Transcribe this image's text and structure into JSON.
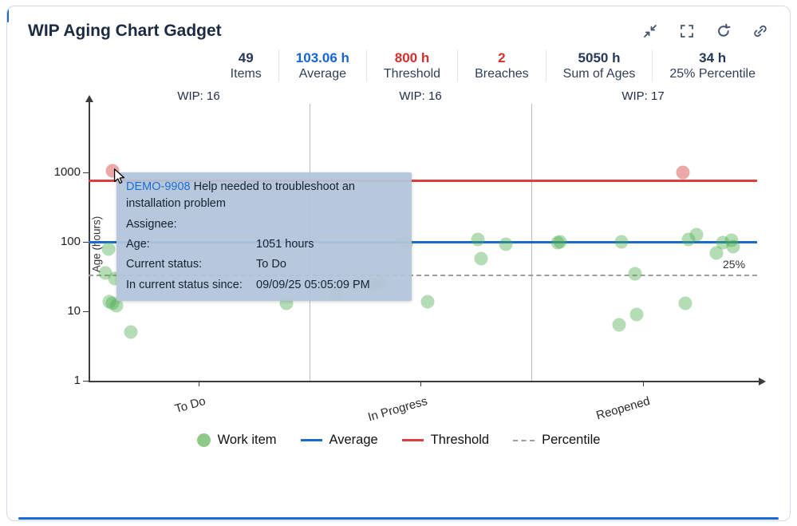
{
  "header": {
    "title": "WIP Aging Chart Gadget",
    "actions": [
      {
        "name": "collapse-icon"
      },
      {
        "name": "fullscreen-icon"
      },
      {
        "name": "refresh-icon"
      },
      {
        "name": "copy-link-icon"
      }
    ]
  },
  "stats": [
    {
      "value": "49",
      "label": "Items",
      "color": "#253858"
    },
    {
      "value": "103.06 h",
      "label": "Average",
      "color": "#1464d8"
    },
    {
      "value": "800 h",
      "label": "Threshold",
      "color": "#d32f2f"
    },
    {
      "value": "2",
      "label": "Breaches",
      "color": "#d32f2f"
    },
    {
      "value": "5050 h",
      "label": "Sum of Ages",
      "color": "#253858"
    },
    {
      "value": "34 h",
      "label": "25% Percentile",
      "color": "#253858"
    }
  ],
  "chart_data": {
    "type": "scatter",
    "ylabel": "Age (hours)",
    "y_scale": "log",
    "ylim": [
      1,
      3000
    ],
    "y_ticks": [
      1,
      10,
      100,
      1000
    ],
    "columns": [
      {
        "label": "To Do",
        "wip": "WIP: 16"
      },
      {
        "label": "In Progress",
        "wip": "WIP: 16"
      },
      {
        "label": "Reopened",
        "wip": "WIP: 17"
      }
    ],
    "reference_lines": [
      {
        "name": "Threshold",
        "value": 800,
        "color": "#e03e3e",
        "style": "solid"
      },
      {
        "name": "Average",
        "value": 103.06,
        "color": "#1b6ac6",
        "style": "solid"
      },
      {
        "name": "Percentile",
        "value": 34,
        "color": "#9e9e9e",
        "style": "dashed",
        "label": "25%"
      }
    ],
    "points": [
      {
        "x": 0.036,
        "age": 1051,
        "breach": true
      },
      {
        "x": 0.03,
        "age": 80
      },
      {
        "x": 0.025,
        "age": 36
      },
      {
        "x": 0.04,
        "age": 30
      },
      {
        "x": 0.031,
        "age": 14
      },
      {
        "x": 0.036,
        "age": 13
      },
      {
        "x": 0.042,
        "age": 12
      },
      {
        "x": 0.063,
        "age": 5
      },
      {
        "x": 0.297,
        "age": 13
      },
      {
        "x": 0.371,
        "age": 18
      },
      {
        "x": 0.399,
        "age": 24
      },
      {
        "x": 0.425,
        "age": 25
      },
      {
        "x": 0.437,
        "age": 26
      },
      {
        "x": 0.477,
        "age": 95
      },
      {
        "x": 0.509,
        "age": 14
      },
      {
        "x": 0.584,
        "age": 108
      },
      {
        "x": 0.589,
        "age": 58
      },
      {
        "x": 0.626,
        "age": 93
      },
      {
        "x": 0.704,
        "age": 98
      },
      {
        "x": 0.708,
        "age": 100
      },
      {
        "x": 0.796,
        "age": 6.5
      },
      {
        "x": 0.8,
        "age": 100
      },
      {
        "x": 0.82,
        "age": 35
      },
      {
        "x": 0.823,
        "age": 9
      },
      {
        "x": 0.892,
        "age": 1000,
        "breach": true
      },
      {
        "x": 0.896,
        "age": 13
      },
      {
        "x": 0.9,
        "age": 110
      },
      {
        "x": 0.912,
        "age": 127
      },
      {
        "x": 0.943,
        "age": 70
      },
      {
        "x": 0.952,
        "age": 97
      },
      {
        "x": 0.965,
        "age": 107
      },
      {
        "x": 0.968,
        "age": 85
      }
    ]
  },
  "tooltip": {
    "issue_key": "DEMO-9908",
    "summary": "Help needed to troubleshoot an installation problem",
    "rows": [
      {
        "label": "Assignee:",
        "value": ""
      },
      {
        "label": "Age:",
        "value": "1051 hours"
      },
      {
        "label": "Current status:",
        "value": "To Do"
      },
      {
        "label": "In current status since:",
        "value": "09/09/25 05:05:09 PM"
      }
    ]
  },
  "legend": [
    {
      "label": "Work item",
      "swatch": "dot",
      "color": "#8ec98a"
    },
    {
      "label": "Average",
      "swatch": "line",
      "color": "#1b6ac6"
    },
    {
      "label": "Threshold",
      "swatch": "line",
      "color": "#e03e3e"
    },
    {
      "label": "Percentile",
      "swatch": "dashed",
      "color": "#9e9e9e"
    }
  ]
}
